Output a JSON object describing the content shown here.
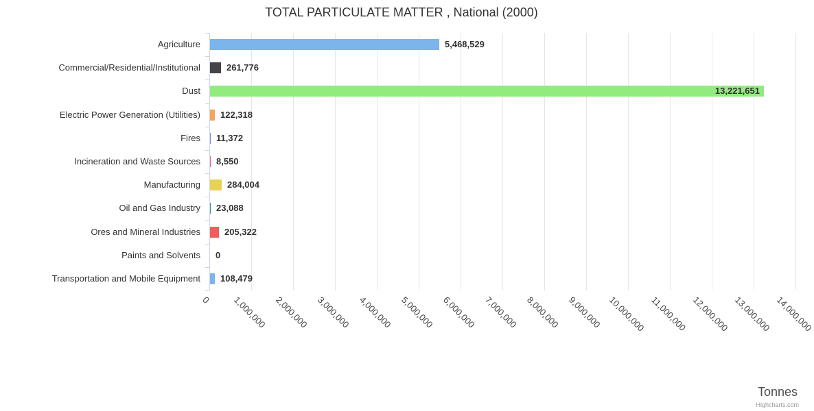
{
  "chart": {
    "title": "TOTAL PARTICULATE MATTER , National (2000)",
    "axis_title": "Tonnes",
    "credits": "Highcharts.com"
  },
  "chart_data": {
    "type": "bar",
    "orientation": "horizontal",
    "title": "TOTAL PARTICULATE MATTER , National (2000)",
    "xlabel": "Tonnes",
    "ylabel": "",
    "xlim": [
      0,
      14000000
    ],
    "tick_interval": 1000000,
    "grid": true,
    "legend": false,
    "categories": [
      "Agriculture",
      "Commercial/Residential/Institutional",
      "Dust",
      "Electric Power Generation (Utilities)",
      "Fires",
      "Incineration and Waste Sources",
      "Manufacturing",
      "Oil and Gas Industry",
      "Ores and Mineral Industries",
      "Paints and Solvents",
      "Transportation and Mobile Equipment"
    ],
    "values": [
      5468529,
      261776,
      13221651,
      122318,
      11372,
      8550,
      284004,
      23088,
      205322,
      0,
      108479
    ],
    "value_labels": [
      "5,468,529",
      "261,776",
      "13,221,651",
      "122,318",
      "11,372",
      "8,550",
      "284,004",
      "23,088",
      "205,322",
      "0",
      "108,479"
    ],
    "colors": [
      "#7cb5ec",
      "#434348",
      "#90ed7d",
      "#f7a35c",
      "#8085e9",
      "#f15c80",
      "#e4d354",
      "#2b908f",
      "#f45b5b",
      "#91e8e1",
      "#7cb5ec"
    ],
    "tick_labels": [
      "0",
      "1,000,000",
      "2,000,000",
      "3,000,000",
      "4,000,000",
      "5,000,000",
      "6,000,000",
      "7,000,000",
      "8,000,000",
      "9,000,000",
      "10,000,000",
      "11,000,000",
      "12,000,000",
      "13,000,000",
      "14,000,000"
    ]
  }
}
